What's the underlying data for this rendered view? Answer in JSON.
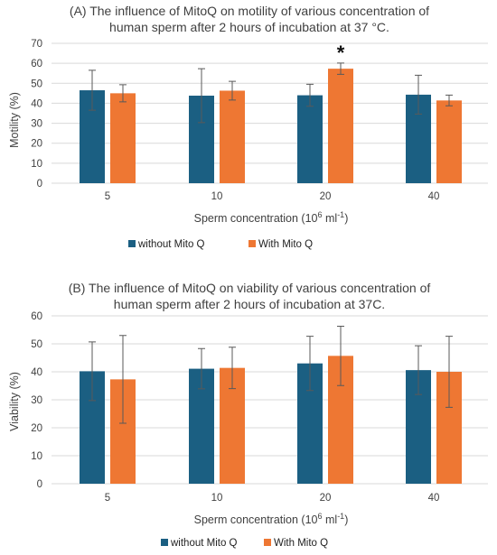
{
  "colors": {
    "without": "#1b5f82",
    "with": "#ee7733"
  },
  "chart_data": [
    {
      "type": "bar",
      "title_line1": "(A) The influence of MitoQ on motility of various concentration of",
      "title_line2": "human sperm after 2 hours of incubation at 37 °C.",
      "xlabel": "Sperm concentration (10",
      "xlabel_sup": "6",
      "xlabel_tail": " ml",
      "xlabel_sup2": "-1",
      "xlabel_end": ")",
      "ylabel": "Motility (%)",
      "ylim": [
        0,
        70
      ],
      "yticks": [
        0,
        10,
        20,
        30,
        40,
        50,
        60,
        70
      ],
      "categories": [
        "5",
        "10",
        "20",
        "40"
      ],
      "series": [
        {
          "name": "without Mito Q",
          "values": [
            46.5,
            43.8,
            44.0,
            44.3
          ],
          "errors": [
            10,
            13.5,
            5.5,
            9.7
          ]
        },
        {
          "name": "With Mito Q",
          "values": [
            45.0,
            46.3,
            57.3,
            41.4
          ],
          "errors": [
            4.3,
            4.7,
            2.8,
            2.7
          ]
        }
      ],
      "annotations": [
        {
          "text": "*",
          "category": "20",
          "series": 1
        }
      ],
      "legend": "bottom",
      "grid": true
    },
    {
      "type": "bar",
      "title_line1": "(B) The influence of MitoQ on viability of various concentration of",
      "title_line2": "human sperm after 2 hours of incubation at 37C.",
      "xlabel": "Sperm concentration (10",
      "xlabel_sup": "6",
      "xlabel_tail": " ml",
      "xlabel_sup2": "-1",
      "xlabel_end": ")",
      "ylabel": "Viability (%)",
      "ylim": [
        0,
        60
      ],
      "yticks": [
        0,
        10,
        20,
        30,
        40,
        50,
        60
      ],
      "categories": [
        "5",
        "10",
        "20",
        "40"
      ],
      "series": [
        {
          "name": "without Mito Q",
          "values": [
            40.2,
            41.1,
            43.0,
            40.6
          ],
          "errors": [
            10.5,
            7.2,
            9.7,
            8.7
          ]
        },
        {
          "name": "With Mito Q",
          "values": [
            37.3,
            41.4,
            45.7,
            40.0
          ],
          "errors": [
            15.7,
            7.4,
            10.6,
            12.7
          ]
        }
      ],
      "annotations": [],
      "legend": "bottom",
      "grid": true
    }
  ]
}
